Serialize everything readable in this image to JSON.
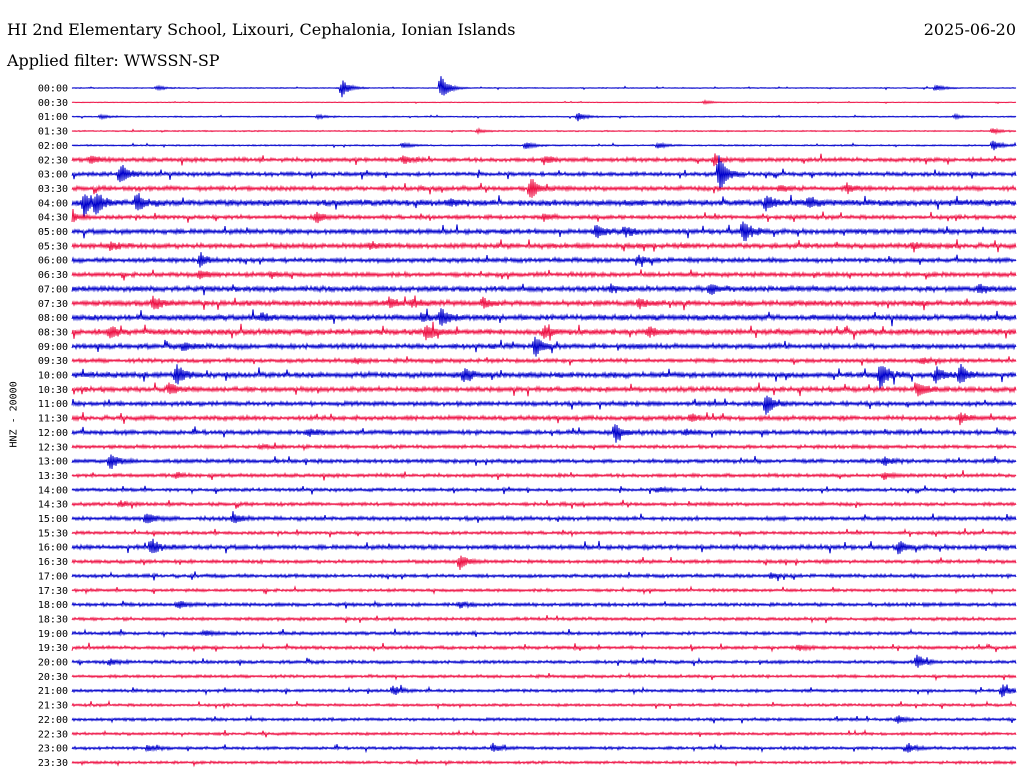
{
  "header": {
    "station": "HI 2nd Elementary School, Lixouri, Cephalonia, Ionian Islands",
    "date": "2025-06-20",
    "filter": "Applied filter: WWSSN-SP"
  },
  "chart_data": {
    "type": "line",
    "title": "HI 2nd Elementary School, Lixouri, Cephalonia, Ionian Islands",
    "ylabel": "HNZ - 20000",
    "colors": [
      "#0000cc",
      "#ee1144"
    ],
    "rows": [
      {
        "label": "00:00",
        "noise": 0.4,
        "events": [
          [
            0.09,
            2
          ],
          [
            0.285,
            10
          ],
          [
            0.39,
            14
          ],
          [
            0.915,
            3
          ]
        ]
      },
      {
        "label": "00:30",
        "noise": 0.3,
        "events": [
          [
            0.67,
            2
          ]
        ]
      },
      {
        "label": "01:00",
        "noise": 0.5,
        "events": [
          [
            0.03,
            2
          ],
          [
            0.26,
            2
          ],
          [
            0.535,
            5
          ],
          [
            0.935,
            2
          ]
        ]
      },
      {
        "label": "01:30",
        "noise": 0.5,
        "events": [
          [
            0.43,
            2
          ],
          [
            0.975,
            3
          ]
        ]
      },
      {
        "label": "02:00",
        "noise": 0.6,
        "events": [
          [
            0.35,
            3
          ],
          [
            0.48,
            4
          ],
          [
            0.62,
            3
          ],
          [
            0.975,
            6
          ]
        ]
      },
      {
        "label": "02:30",
        "noise": 1.6,
        "events": [
          [
            0.02,
            4
          ],
          [
            0.35,
            4
          ],
          [
            0.5,
            4
          ],
          [
            0.68,
            6
          ]
        ]
      },
      {
        "label": "03:00",
        "noise": 1.6,
        "events": [
          [
            0.05,
            13
          ],
          [
            0.685,
            20
          ]
        ]
      },
      {
        "label": "03:30",
        "noise": 1.8,
        "events": [
          [
            0.485,
            12
          ],
          [
            0.82,
            5
          ],
          [
            0.75,
            3
          ]
        ]
      },
      {
        "label": "04:00",
        "noise": 2.5,
        "events": [
          [
            0.012,
            14
          ],
          [
            0.025,
            10
          ],
          [
            0.068,
            11
          ],
          [
            0.735,
            8
          ],
          [
            0.78,
            6
          ],
          [
            0.4,
            3
          ]
        ]
      },
      {
        "label": "04:30",
        "noise": 1.6,
        "events": [
          [
            0.0,
            4
          ],
          [
            0.258,
            6
          ],
          [
            0.5,
            3
          ]
        ]
      },
      {
        "label": "05:00",
        "noise": 2.0,
        "events": [
          [
            0.555,
            7
          ],
          [
            0.585,
            6
          ],
          [
            0.71,
            14
          ]
        ]
      },
      {
        "label": "05:30",
        "noise": 2.0,
        "events": [
          [
            0.04,
            4
          ],
          [
            0.315,
            4
          ],
          [
            0.89,
            4
          ]
        ]
      },
      {
        "label": "06:00",
        "noise": 1.8,
        "events": [
          [
            0.135,
            8
          ],
          [
            0.6,
            5
          ]
        ]
      },
      {
        "label": "06:30",
        "noise": 1.8,
        "events": [
          [
            0.135,
            5
          ],
          [
            0.21,
            3
          ]
        ]
      },
      {
        "label": "07:00",
        "noise": 2.2,
        "events": [
          [
            0.675,
            7
          ],
          [
            0.57,
            4
          ],
          [
            0.96,
            6
          ]
        ]
      },
      {
        "label": "07:30",
        "noise": 2.2,
        "events": [
          [
            0.085,
            7
          ],
          [
            0.335,
            5
          ],
          [
            0.435,
            5
          ],
          [
            0.6,
            5
          ],
          [
            0.36,
            4
          ]
        ]
      },
      {
        "label": "08:00",
        "noise": 2.3,
        "events": [
          [
            0.39,
            10
          ],
          [
            0.2,
            3
          ],
          [
            0.37,
            4
          ]
        ]
      },
      {
        "label": "08:30",
        "noise": 2.3,
        "events": [
          [
            0.04,
            7
          ],
          [
            0.375,
            8
          ],
          [
            0.5,
            6
          ],
          [
            0.61,
            5
          ]
        ]
      },
      {
        "label": "09:00",
        "noise": 2.0,
        "events": [
          [
            0.118,
            5
          ],
          [
            0.49,
            11
          ]
        ]
      },
      {
        "label": "09:30",
        "noise": 1.6,
        "events": [
          [
            0.3,
            3
          ],
          [
            0.9,
            3
          ]
        ]
      },
      {
        "label": "10:00",
        "noise": 2.2,
        "events": [
          [
            0.11,
            11
          ],
          [
            0.415,
            8
          ],
          [
            0.855,
            15
          ],
          [
            0.915,
            8
          ],
          [
            0.94,
            11
          ]
        ]
      },
      {
        "label": "10:30",
        "noise": 2.0,
        "events": [
          [
            0.102,
            7
          ],
          [
            0.895,
            8
          ]
        ]
      },
      {
        "label": "11:00",
        "noise": 1.8,
        "events": [
          [
            0.735,
            13
          ]
        ]
      },
      {
        "label": "11:30",
        "noise": 1.8,
        "events": [
          [
            0.655,
            5
          ],
          [
            0.94,
            5
          ]
        ]
      },
      {
        "label": "12:00",
        "noise": 1.8,
        "events": [
          [
            0.575,
            10
          ],
          [
            0.25,
            4
          ],
          [
            0.65,
            3
          ]
        ]
      },
      {
        "label": "12:30",
        "noise": 1.4,
        "events": [
          [
            0.2,
            2
          ]
        ]
      },
      {
        "label": "13:00",
        "noise": 1.6,
        "events": [
          [
            0.04,
            9
          ],
          [
            0.86,
            4
          ]
        ]
      },
      {
        "label": "13:30",
        "noise": 1.4,
        "events": [
          [
            0.11,
            3
          ],
          [
            0.86,
            3
          ]
        ]
      },
      {
        "label": "14:00",
        "noise": 1.3,
        "events": [
          [
            0.62,
            3
          ]
        ]
      },
      {
        "label": "14:30",
        "noise": 1.4,
        "events": [
          [
            0.05,
            3
          ]
        ]
      },
      {
        "label": "15:00",
        "noise": 1.6,
        "events": [
          [
            0.078,
            6
          ],
          [
            0.17,
            6
          ]
        ]
      },
      {
        "label": "15:30",
        "noise": 1.3,
        "events": []
      },
      {
        "label": "16:00",
        "noise": 1.8,
        "events": [
          [
            0.083,
            8
          ],
          [
            0.875,
            6
          ]
        ]
      },
      {
        "label": "16:30",
        "noise": 1.4,
        "events": [
          [
            0.41,
            9
          ]
        ]
      },
      {
        "label": "17:00",
        "noise": 1.4,
        "events": [
          [
            0.74,
            3
          ]
        ]
      },
      {
        "label": "17:30",
        "noise": 1.2,
        "events": []
      },
      {
        "label": "18:00",
        "noise": 1.4,
        "events": [
          [
            0.112,
            4
          ],
          [
            0.41,
            3
          ]
        ]
      },
      {
        "label": "18:30",
        "noise": 1.3,
        "events": []
      },
      {
        "label": "19:00",
        "noise": 1.3,
        "events": [
          [
            0.14,
            3
          ]
        ]
      },
      {
        "label": "19:30",
        "noise": 1.3,
        "events": [
          [
            0.77,
            3
          ]
        ]
      },
      {
        "label": "20:00",
        "noise": 1.3,
        "events": [
          [
            0.895,
            7
          ],
          [
            0.04,
            3
          ]
        ]
      },
      {
        "label": "20:30",
        "noise": 1.2,
        "events": []
      },
      {
        "label": "21:00",
        "noise": 1.2,
        "events": [
          [
            0.34,
            5
          ],
          [
            0.985,
            6
          ]
        ]
      },
      {
        "label": "21:30",
        "noise": 1.1,
        "events": []
      },
      {
        "label": "22:00",
        "noise": 1.2,
        "events": [
          [
            0.875,
            3
          ]
        ]
      },
      {
        "label": "22:30",
        "noise": 1.1,
        "events": []
      },
      {
        "label": "23:00",
        "noise": 1.2,
        "events": [
          [
            0.08,
            3
          ],
          [
            0.445,
            5
          ],
          [
            0.885,
            5
          ]
        ]
      },
      {
        "label": "23:30",
        "noise": 1.1,
        "events": []
      }
    ]
  }
}
